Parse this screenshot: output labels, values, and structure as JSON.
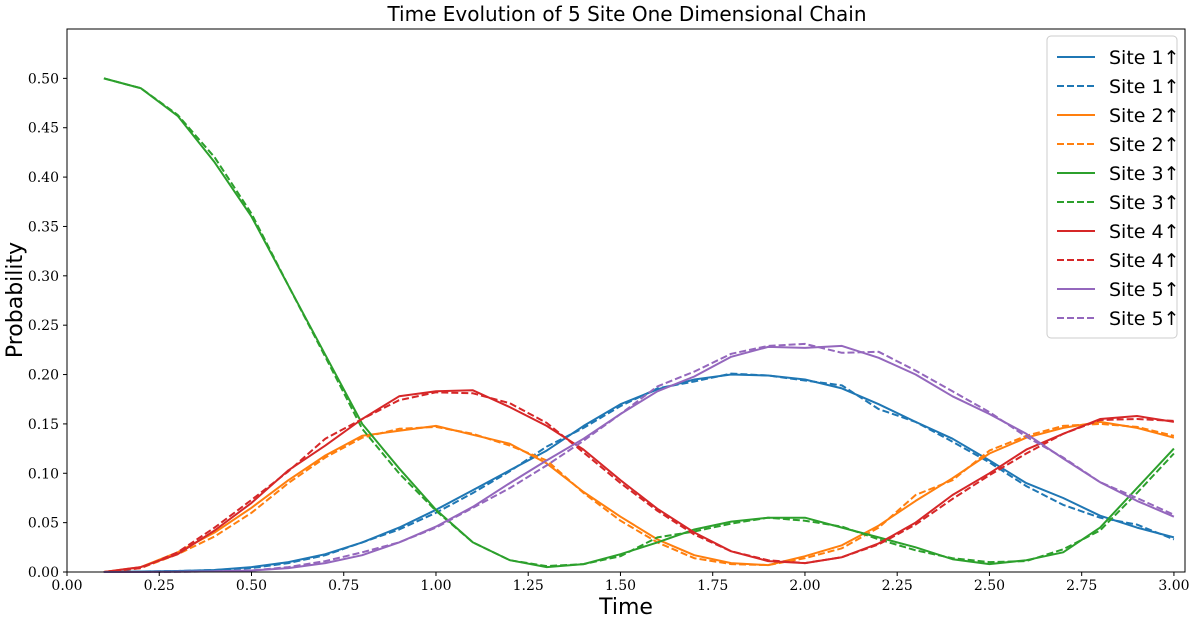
{
  "chart_data": {
    "type": "line",
    "title": "Time Evolution of 5 Site One Dimensional Chain",
    "xlabel": "Time",
    "ylabel": "Probability",
    "xlim": [
      0.0,
      3.03
    ],
    "ylim": [
      0.0,
      0.55
    ],
    "xticks": [
      0.0,
      0.25,
      0.5,
      0.75,
      1.0,
      1.25,
      1.5,
      1.75,
      2.0,
      2.25,
      2.5,
      2.75,
      3.0
    ],
    "xtick_labels": [
      "0.00",
      "0.25",
      "0.50",
      "0.75",
      "1.00",
      "1.25",
      "1.50",
      "1.75",
      "2.00",
      "2.25",
      "2.50",
      "2.75",
      "3.00"
    ],
    "yticks": [
      0.0,
      0.05,
      0.1,
      0.15,
      0.2,
      0.25,
      0.3,
      0.35,
      0.4,
      0.45,
      0.5
    ],
    "ytick_labels": [
      "0.00",
      "0.05",
      "0.10",
      "0.15",
      "0.20",
      "0.25",
      "0.30",
      "0.35",
      "0.40",
      "0.45",
      "0.50"
    ],
    "grid": false,
    "legend_position": "top-right",
    "x": [
      0.1,
      0.2,
      0.3,
      0.4,
      0.5,
      0.6,
      0.7,
      0.8,
      0.9,
      1.0,
      1.1,
      1.2,
      1.3,
      1.4,
      1.5,
      1.6,
      1.7,
      1.8,
      1.9,
      2.0,
      2.1,
      2.2,
      2.3,
      2.4,
      2.5,
      2.6,
      2.7,
      2.8,
      2.9,
      3.0
    ],
    "series": [
      {
        "name": "Site 1↑",
        "color": "#1f77b4",
        "style": "solid",
        "values": [
          0.0,
          0.0005,
          0.001,
          0.002,
          0.005,
          0.01,
          0.018,
          0.03,
          0.045,
          0.063,
          0.083,
          0.103,
          0.123,
          0.148,
          0.17,
          0.185,
          0.195,
          0.2,
          0.199,
          0.195,
          0.186,
          0.17,
          0.152,
          0.135,
          0.113,
          0.09,
          0.075,
          0.057,
          0.045,
          0.035
        ]
      },
      {
        "name": "Site 1↑",
        "color": "#1f77b4",
        "style": "dashed",
        "values": [
          0.0,
          0.0005,
          0.001,
          0.002,
          0.004,
          0.009,
          0.017,
          0.03,
          0.043,
          0.06,
          0.08,
          0.102,
          0.127,
          0.146,
          0.168,
          0.186,
          0.193,
          0.201,
          0.199,
          0.194,
          0.189,
          0.165,
          0.152,
          0.132,
          0.111,
          0.087,
          0.068,
          0.055,
          0.048,
          0.033
        ]
      },
      {
        "name": "Site 2↑",
        "color": "#ff7f0e",
        "style": "solid",
        "values": [
          0.0,
          0.005,
          0.02,
          0.04,
          0.065,
          0.093,
          0.118,
          0.138,
          0.143,
          0.148,
          0.139,
          0.13,
          0.11,
          0.081,
          0.056,
          0.033,
          0.017,
          0.009,
          0.007,
          0.016,
          0.027,
          0.047,
          0.072,
          0.095,
          0.12,
          0.136,
          0.146,
          0.152,
          0.146,
          0.136
        ]
      },
      {
        "name": "Site 2↑",
        "color": "#ff7f0e",
        "style": "dashed",
        "values": [
          0.0,
          0.004,
          0.018,
          0.036,
          0.06,
          0.09,
          0.116,
          0.136,
          0.145,
          0.147,
          0.14,
          0.128,
          0.113,
          0.08,
          0.052,
          0.03,
          0.014,
          0.008,
          0.007,
          0.014,
          0.024,
          0.045,
          0.078,
          0.093,
          0.123,
          0.138,
          0.148,
          0.15,
          0.147,
          0.138
        ]
      },
      {
        "name": "Site 3↑",
        "color": "#2ca02c",
        "style": "solid",
        "values": [
          0.5,
          0.49,
          0.462,
          0.415,
          0.36,
          0.29,
          0.22,
          0.15,
          0.105,
          0.063,
          0.03,
          0.012,
          0.005,
          0.008,
          0.018,
          0.03,
          0.043,
          0.051,
          0.055,
          0.055,
          0.045,
          0.035,
          0.025,
          0.013,
          0.008,
          0.012,
          0.02,
          0.045,
          0.085,
          0.125
        ]
      },
      {
        "name": "Site 3↑",
        "color": "#2ca02c",
        "style": "dashed",
        "values": [
          0.5,
          0.49,
          0.463,
          0.42,
          0.363,
          0.29,
          0.218,
          0.145,
          0.1,
          0.062,
          0.03,
          0.012,
          0.006,
          0.008,
          0.016,
          0.035,
          0.041,
          0.049,
          0.055,
          0.052,
          0.046,
          0.033,
          0.022,
          0.014,
          0.01,
          0.011,
          0.023,
          0.042,
          0.08,
          0.12
        ]
      },
      {
        "name": "Site 4↑",
        "color": "#d62728",
        "style": "solid",
        "values": [
          0.0,
          0.005,
          0.018,
          0.042,
          0.07,
          0.103,
          0.128,
          0.155,
          0.178,
          0.183,
          0.184,
          0.167,
          0.148,
          0.124,
          0.093,
          0.064,
          0.04,
          0.021,
          0.011,
          0.009,
          0.015,
          0.029,
          0.05,
          0.078,
          0.1,
          0.124,
          0.14,
          0.155,
          0.158,
          0.152
        ]
      },
      {
        "name": "Site 4↑",
        "color": "#d62728",
        "style": "dashed",
        "values": [
          0.0,
          0.004,
          0.02,
          0.045,
          0.073,
          0.102,
          0.135,
          0.155,
          0.174,
          0.182,
          0.181,
          0.171,
          0.151,
          0.121,
          0.09,
          0.062,
          0.038,
          0.021,
          0.012,
          0.009,
          0.015,
          0.028,
          0.048,
          0.074,
          0.098,
          0.12,
          0.14,
          0.154,
          0.155,
          0.153
        ]
      },
      {
        "name": "Site 5↑",
        "color": "#9467bd",
        "style": "solid",
        "values": [
          0.0,
          0.0,
          0.0002,
          0.0006,
          0.0015,
          0.004,
          0.009,
          0.017,
          0.03,
          0.046,
          0.066,
          0.09,
          0.113,
          0.135,
          0.16,
          0.183,
          0.198,
          0.218,
          0.228,
          0.227,
          0.229,
          0.217,
          0.2,
          0.178,
          0.16,
          0.14,
          0.115,
          0.091,
          0.072,
          0.056
        ]
      },
      {
        "name": "Site 5↑",
        "color": "#9467bd",
        "style": "dashed",
        "values": [
          0.0,
          0.0,
          0.0002,
          0.0006,
          0.0015,
          0.005,
          0.011,
          0.02,
          0.03,
          0.045,
          0.065,
          0.085,
          0.108,
          0.133,
          0.16,
          0.188,
          0.203,
          0.221,
          0.229,
          0.231,
          0.222,
          0.223,
          0.204,
          0.183,
          0.162,
          0.137,
          0.116,
          0.091,
          0.075,
          0.058
        ]
      }
    ]
  }
}
